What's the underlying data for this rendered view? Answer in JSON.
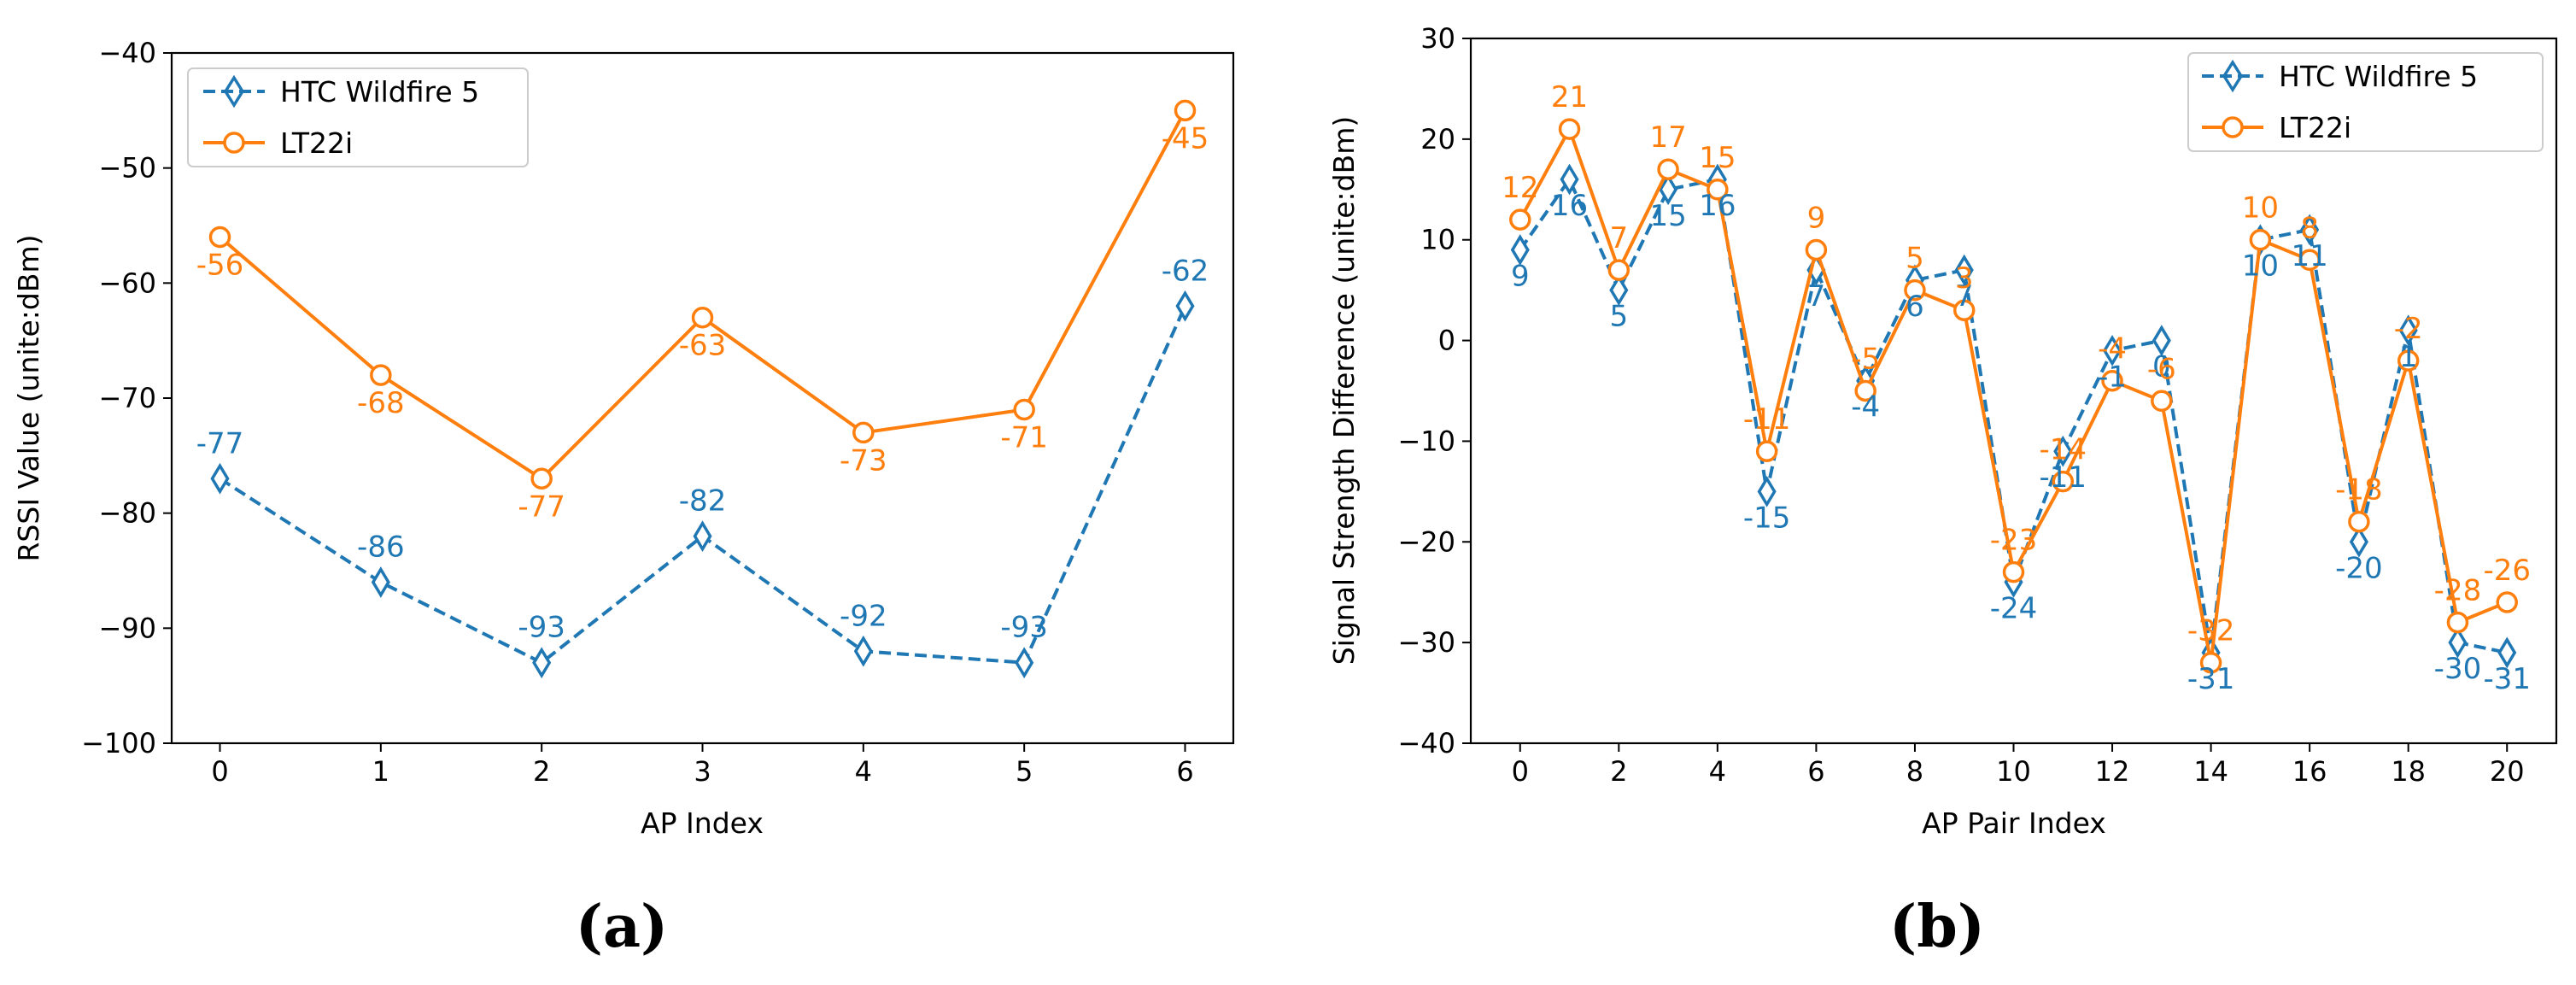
{
  "colors": {
    "htc": "#1f77b4",
    "lt22i": "#ff7f0e",
    "axis": "#000000"
  },
  "charts": [
    {
      "panel_label": "(a)",
      "type": "line",
      "title": "",
      "xlabel": "AP Index",
      "ylabel": "RSSI Value (unite:dBm)",
      "xlim": [
        -0.3,
        6.3
      ],
      "ylim": [
        -100,
        -40
      ],
      "xticks": [
        0,
        1,
        2,
        3,
        4,
        5,
        6
      ],
      "yticks": [
        -100,
        -90,
        -80,
        -70,
        -60,
        -50,
        -40
      ],
      "ytick_labels": [
        "−100",
        "−90",
        "−80",
        "−70",
        "−60",
        "−50",
        "−40"
      ],
      "legend": [
        "HTC Wildfire 5",
        "LT22i"
      ],
      "legend_position": "upper-left",
      "series": [
        {
          "name": "HTC Wildfire 5",
          "marker": "diamond",
          "style": "dashed",
          "x": [
            0,
            1,
            2,
            3,
            4,
            5,
            6
          ],
          "values": [
            -77,
            -86,
            -93,
            -82,
            -92,
            -93,
            -62
          ],
          "labels": [
            "-77",
            "-86",
            "-93",
            "-82",
            "-92",
            "-93",
            "-62"
          ]
        },
        {
          "name": "LT22i",
          "marker": "circle",
          "style": "solid",
          "x": [
            0,
            1,
            2,
            3,
            4,
            5,
            6
          ],
          "values": [
            -56,
            -68,
            -77,
            -63,
            -73,
            -71,
            -45
          ],
          "labels": [
            "-56",
            "-68",
            "-77",
            "-63",
            "-73",
            "-71",
            "-45"
          ]
        }
      ]
    },
    {
      "panel_label": "(b)",
      "type": "line",
      "title": "",
      "xlabel": "AP Pair Index",
      "ylabel": "Signal Strength Difference (unite:dBm)",
      "xlim": [
        -1,
        21
      ],
      "ylim": [
        -40,
        30
      ],
      "xticks": [
        0,
        2,
        4,
        6,
        8,
        10,
        12,
        14,
        16,
        18,
        20
      ],
      "yticks": [
        -40,
        -30,
        -20,
        -10,
        0,
        10,
        20,
        30
      ],
      "ytick_labels": [
        "−40",
        "−30",
        "−20",
        "−10",
        "0",
        "10",
        "20",
        "30"
      ],
      "legend": [
        "HTC Wildfire 5",
        "LT22i"
      ],
      "legend_position": "upper-right",
      "series": [
        {
          "name": "HTC Wildfire 5",
          "marker": "diamond",
          "style": "dashed",
          "x": [
            0,
            1,
            2,
            3,
            4,
            5,
            6,
            7,
            8,
            9,
            10,
            11,
            12,
            13,
            14,
            15,
            16,
            17,
            18,
            19,
            20
          ],
          "values": [
            9,
            16,
            5,
            15,
            16,
            -15,
            7,
            -4,
            6,
            7,
            -24,
            -11,
            -1,
            0,
            -31,
            10,
            11,
            -20,
            1,
            -30,
            -31
          ],
          "labels": [
            "9",
            "16",
            "5",
            "15",
            "16",
            "-15",
            "7",
            "-4",
            "6",
            "7",
            "-24",
            "-11",
            "-1",
            "0",
            "-31",
            "10",
            "11",
            "-20",
            "1",
            "-30",
            "-31"
          ]
        },
        {
          "name": "LT22i",
          "marker": "circle",
          "style": "solid",
          "x": [
            0,
            1,
            2,
            3,
            4,
            5,
            6,
            7,
            8,
            9,
            10,
            11,
            12,
            13,
            14,
            15,
            16,
            17,
            18,
            19,
            20
          ],
          "values": [
            12,
            21,
            7,
            17,
            15,
            -11,
            9,
            -5,
            5,
            3,
            -23,
            -14,
            -4,
            -6,
            -32,
            10,
            8,
            -18,
            -2,
            -28,
            -26
          ],
          "labels": [
            "12",
            "21",
            "7",
            "17",
            "15",
            "-11",
            "9",
            "-5",
            "5",
            "3",
            "-23",
            "-14",
            "-4",
            "-6",
            "-32",
            "10",
            "8",
            "-18",
            "-2",
            "-28",
            "-26"
          ]
        }
      ]
    }
  ],
  "chart_data": [
    {
      "type": "line",
      "title": "(a)",
      "xlabel": "AP Index",
      "ylabel": "RSSI Value (unite:dBm)",
      "x": [
        0,
        1,
        2,
        3,
        4,
        5,
        6
      ],
      "ylim": [
        -100,
        -40
      ],
      "series": [
        {
          "name": "HTC Wildfire 5",
          "values": [
            -77,
            -86,
            -93,
            -82,
            -92,
            -93,
            -62
          ]
        },
        {
          "name": "LT22i",
          "values": [
            -56,
            -68,
            -77,
            -63,
            -73,
            -71,
            -45
          ]
        }
      ]
    },
    {
      "type": "line",
      "title": "(b)",
      "xlabel": "AP Pair Index",
      "ylabel": "Signal Strength Difference (unite:dBm)",
      "x": [
        0,
        1,
        2,
        3,
        4,
        5,
        6,
        7,
        8,
        9,
        10,
        11,
        12,
        13,
        14,
        15,
        16,
        17,
        18,
        19,
        20
      ],
      "ylim": [
        -40,
        30
      ],
      "series": [
        {
          "name": "HTC Wildfire 5",
          "values": [
            9,
            16,
            5,
            15,
            16,
            -15,
            7,
            -4,
            6,
            7,
            -24,
            -11,
            -1,
            0,
            -31,
            10,
            11,
            -20,
            1,
            -30,
            -31
          ]
        },
        {
          "name": "LT22i",
          "values": [
            12,
            21,
            7,
            17,
            15,
            -11,
            9,
            -5,
            5,
            3,
            -23,
            -14,
            -4,
            -6,
            -32,
            10,
            8,
            -18,
            -2,
            -28,
            -26
          ]
        }
      ]
    }
  ]
}
